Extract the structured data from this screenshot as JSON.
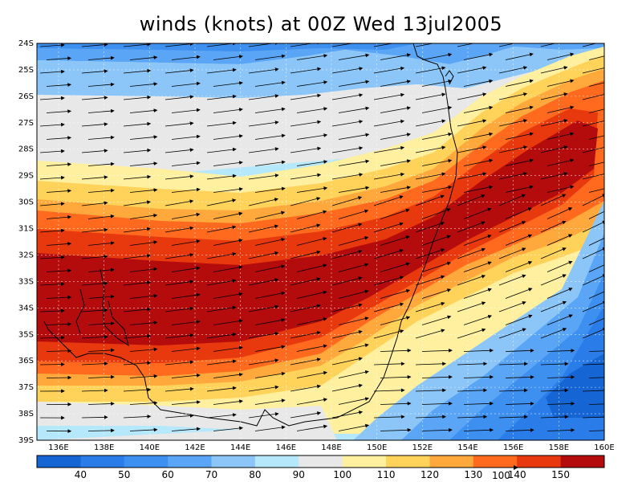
{
  "title": "winds (knots) at 00Z Wed 13jul2005",
  "latitudes": [
    "24S",
    "25S",
    "26S",
    "27S",
    "28S",
    "29S",
    "30S",
    "31S",
    "32S",
    "33S",
    "34S",
    "35S",
    "36S",
    "37S",
    "38S",
    "39S"
  ],
  "longitudes": [
    "136E",
    "138E",
    "140E",
    "142E",
    "144E",
    "146E",
    "148E",
    "150E",
    "152E",
    "154E",
    "156E",
    "158E",
    "160E"
  ],
  "colorbar": {
    "labels": [
      "40",
      "50",
      "60",
      "70",
      "80",
      "90",
      "100",
      "110",
      "120",
      "130",
      "140",
      "150"
    ],
    "colors": [
      "#1565d4",
      "#2a7de8",
      "#3d8ff0",
      "#5aa5f5",
      "#8cc6f8",
      "#b4e8fa",
      "#e8e8e8",
      "#fff0a0",
      "#ffd25a",
      "#ffa83c",
      "#ff6a1e",
      "#e8380e",
      "#b40c0c"
    ],
    "vector_reference": "100"
  },
  "colors": {
    "jet_core": "#b40c0c",
    "jet_outer": "#e8380e",
    "coast": "#000000"
  }
}
